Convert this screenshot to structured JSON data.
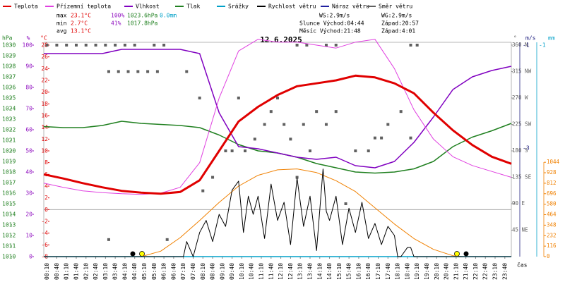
{
  "chart_data": {
    "type": "line",
    "title": "12.6.2025",
    "x_label": "čas",
    "xlim": [
      0,
      1440
    ],
    "xticks": [
      {
        "value": 10,
        "label": "00:10"
      },
      {
        "value": 40,
        "label": "00:40"
      },
      {
        "value": 70,
        "label": "01:10"
      },
      {
        "value": 100,
        "label": "01:40"
      },
      {
        "value": 130,
        "label": "02:10"
      },
      {
        "value": 160,
        "label": "02:40"
      },
      {
        "value": 190,
        "label": "03:10"
      },
      {
        "value": 220,
        "label": "03:40"
      },
      {
        "value": 250,
        "label": "04:10"
      },
      {
        "value": 280,
        "label": "04:40"
      },
      {
        "value": 310,
        "label": "05:10"
      },
      {
        "value": 340,
        "label": "05:40"
      },
      {
        "value": 370,
        "label": "06:10"
      },
      {
        "value": 400,
        "label": "06:40"
      },
      {
        "value": 430,
        "label": "07:10"
      },
      {
        "value": 460,
        "label": "07:40"
      },
      {
        "value": 490,
        "label": "08:10"
      },
      {
        "value": 520,
        "label": "08:40"
      },
      {
        "value": 550,
        "label": "09:10"
      },
      {
        "value": 580,
        "label": "09:40"
      },
      {
        "value": 610,
        "label": "10:10"
      },
      {
        "value": 640,
        "label": "10:40"
      },
      {
        "value": 670,
        "label": "11:10"
      },
      {
        "value": 700,
        "label": "11:40"
      },
      {
        "value": 730,
        "label": "12:10"
      },
      {
        "value": 760,
        "label": "12:40"
      },
      {
        "value": 790,
        "label": "13:10"
      },
      {
        "value": 820,
        "label": "13:40"
      },
      {
        "value": 850,
        "label": "14:10"
      },
      {
        "value": 880,
        "label": "14:40"
      },
      {
        "value": 910,
        "label": "15:10"
      },
      {
        "value": 940,
        "label": "15:40"
      },
      {
        "value": 970,
        "label": "16:10"
      },
      {
        "value": 1000,
        "label": "16:40"
      },
      {
        "value": 1030,
        "label": "17:10"
      },
      {
        "value": 1060,
        "label": "17:40"
      },
      {
        "value": 1090,
        "label": "18:10"
      },
      {
        "value": 1120,
        "label": "18:40"
      },
      {
        "value": 1150,
        "label": "19:10"
      },
      {
        "value": 1180,
        "label": "19:40"
      },
      {
        "value": 1210,
        "label": "20:10"
      },
      {
        "value": 1240,
        "label": "20:40"
      },
      {
        "value": 1270,
        "label": "21:10"
      },
      {
        "value": 1300,
        "label": "21:40"
      },
      {
        "value": 1330,
        "label": "22:10"
      },
      {
        "value": 1360,
        "label": "22:40"
      },
      {
        "value": 1390,
        "label": "23:10"
      },
      {
        "value": 1420,
        "label": "23:40"
      }
    ],
    "axes": {
      "hpa": {
        "label": "hPa",
        "color": "#208020",
        "lim": [
          1010,
          1030
        ],
        "ticks": [
          1010,
          1011,
          1012,
          1013,
          1014,
          1015,
          1016,
          1017,
          1018,
          1019,
          1020,
          1021,
          1022,
          1023,
          1024,
          1025,
          1026,
          1027,
          1028,
          1029,
          1030
        ]
      },
      "hum": {
        "label": "%",
        "color": "#9010c0",
        "lim": [
          0,
          100
        ],
        "ticks": [
          0,
          10,
          20,
          30,
          40,
          50,
          60,
          70,
          80,
          90,
          100
        ]
      },
      "temp": {
        "label": "°C",
        "color": "#e00000",
        "lim": [
          -8,
          28
        ],
        "ticks": [
          -8,
          -6,
          -4,
          -2,
          0,
          2,
          4,
          6,
          8,
          10,
          12,
          14,
          16,
          18,
          20,
          22,
          24,
          26,
          28
        ]
      },
      "dir": {
        "label": "°",
        "color": "#606060",
        "lim": [
          0,
          360
        ],
        "ticks": [
          {
            "value": 45,
            "label": "45 NE"
          },
          {
            "value": 90,
            "label": "90 E"
          },
          {
            "value": 135,
            "label": "135 SE"
          },
          {
            "value": 180,
            "label": "180 S"
          },
          {
            "value": 225,
            "label": "225 SW"
          },
          {
            "value": 270,
            "label": "270 W"
          },
          {
            "value": 315,
            "label": "315 NW"
          },
          {
            "value": 360,
            "label": "360 N"
          }
        ]
      },
      "wind": {
        "label": "m/s",
        "color": "#202080",
        "lim": [
          0,
          7
        ],
        "marks": [
          "-1",
          "-3"
        ]
      },
      "rain": {
        "label": "mm",
        "color": "#00a0c8",
        "lim": [
          0,
          10
        ],
        "marks": [
          "-1"
        ]
      },
      "rad": {
        "color": "#f08000",
        "lim": [
          0,
          2340
        ],
        "ticks": [
          0,
          116,
          232,
          348,
          464,
          580,
          696,
          812,
          928,
          1044
        ]
      }
    },
    "stats": [
      {
        "label": "max",
        "temp": "23.1°C",
        "hum": "100%",
        "press": "1023.6hPa",
        "rain": "0.0mm"
      },
      {
        "label": "min",
        "temp": "2.7°C",
        "hum": "41%",
        "press": "1017.8hPa"
      },
      {
        "label": "avg",
        "temp": "13.1°C"
      }
    ],
    "info": [
      "WS:2.9m/s",
      "WG:2.9m/s",
      "Slunce Východ:04:44",
      "Západ:20:57",
      "Měsíc Východ:21:48",
      "Západ:4:01"
    ],
    "series": [
      {
        "name": "Teplota",
        "color": "#e00000",
        "axis": "temp",
        "width": 3,
        "x": [
          0,
          60,
          120,
          180,
          240,
          300,
          360,
          420,
          480,
          540,
          600,
          660,
          720,
          780,
          840,
          900,
          960,
          1020,
          1080,
          1140,
          1200,
          1260,
          1320,
          1380,
          1440
        ],
        "values": [
          6,
          5.3,
          4.5,
          3.8,
          3.2,
          2.9,
          2.7,
          3,
          5,
          10,
          15,
          17.5,
          19.5,
          21,
          21.5,
          22,
          22.8,
          22.5,
          21.5,
          19.8,
          16.5,
          13.5,
          11,
          9,
          7.8
        ]
      },
      {
        "name": "Přízemní teplota",
        "color": "#e040e0",
        "axis": "temp",
        "width": 1,
        "x": [
          0,
          60,
          120,
          180,
          240,
          300,
          360,
          420,
          480,
          540,
          600,
          660,
          720,
          780,
          840,
          900,
          960,
          1020,
          1080,
          1140,
          1200,
          1260,
          1320,
          1380,
          1440
        ],
        "values": [
          4.5,
          3.8,
          3.2,
          2.9,
          2.7,
          2.6,
          2.8,
          3.8,
          8,
          19,
          27,
          29,
          28.5,
          28.5,
          28,
          27.5,
          28.5,
          29,
          24,
          17,
          12,
          9,
          7.5,
          6.5,
          5.5
        ]
      },
      {
        "name": "Vlhkost",
        "color": "#8000c0",
        "axis": "hum",
        "width": 1.5,
        "x": [
          0,
          60,
          120,
          180,
          240,
          300,
          360,
          420,
          480,
          540,
          600,
          660,
          720,
          780,
          840,
          900,
          960,
          1020,
          1080,
          1140,
          1200,
          1260,
          1320,
          1380,
          1440
        ],
        "values": [
          96,
          96,
          96,
          96,
          98,
          98,
          98,
          98,
          96,
          68,
          52,
          51,
          49,
          47,
          46,
          47,
          43,
          42,
          45,
          54,
          66,
          79,
          85,
          88,
          90
        ]
      },
      {
        "name": "Tlak",
        "color": "#208020",
        "axis": "hpa",
        "width": 1.5,
        "x": [
          0,
          60,
          120,
          180,
          240,
          300,
          360,
          420,
          480,
          540,
          600,
          660,
          720,
          780,
          840,
          900,
          960,
          1020,
          1080,
          1140,
          1200,
          1260,
          1320,
          1380,
          1440
        ],
        "values": [
          1022.3,
          1022.2,
          1022.2,
          1022.4,
          1022.8,
          1022.6,
          1022.5,
          1022.4,
          1022.2,
          1021.5,
          1020.6,
          1020,
          1019.8,
          1019.4,
          1018.8,
          1018.4,
          1018,
          1017.9,
          1018,
          1018.3,
          1019,
          1020.4,
          1021.3,
          1021.9,
          1022.6
        ]
      },
      {
        "name": "Srážky",
        "color": "#00a0c8",
        "axis": "rain",
        "width": 1.5,
        "x": [
          0,
          1440
        ],
        "values": [
          0,
          0
        ]
      },
      {
        "name": "Rychlost větru",
        "color": "#000000",
        "axis": "wind",
        "width": 1,
        "x": [
          0,
          430,
          440,
          460,
          480,
          500,
          520,
          540,
          560,
          580,
          600,
          615,
          630,
          645,
          660,
          680,
          700,
          720,
          740,
          760,
          780,
          800,
          820,
          840,
          860,
          870,
          880,
          900,
          920,
          940,
          960,
          980,
          1000,
          1020,
          1040,
          1060,
          1080,
          1090,
          1100,
          1120,
          1130,
          1140,
          1440
        ],
        "values": [
          0,
          0,
          0.5,
          0,
          0.8,
          1.2,
          0.5,
          1.4,
          1,
          2.2,
          2.5,
          0.8,
          2,
          1.4,
          2,
          0.6,
          2.4,
          1.2,
          1.8,
          0.4,
          2.6,
          1,
          2,
          0.2,
          2.9,
          1.5,
          1.2,
          2,
          0.4,
          1.6,
          0.8,
          1.8,
          0.6,
          1.1,
          0.4,
          1,
          0.7,
          0,
          0,
          0.3,
          0.3,
          0,
          0
        ]
      },
      {
        "name": "Náraz větru",
        "color": "#2020a0",
        "axis": "wind",
        "width": 1
      },
      {
        "name": "Směr větru",
        "color": "#606060",
        "axis": "dir",
        "marker": "square",
        "x": [
          10,
          40,
          70,
          100,
          130,
          160,
          190,
          220,
          250,
          280,
          340,
          370,
          200,
          230,
          260,
          290,
          320,
          350,
          440,
          480,
          490,
          520,
          560,
          580,
          600,
          620,
          650,
          680,
          700,
          720,
          740,
          760,
          780,
          800,
          820,
          840,
          870,
          900,
          930,
          960,
          1000,
          1020,
          1040,
          1060,
          1100,
          1130,
          780,
          810,
          870,
          900,
          1130,
          1150,
          380,
          200
        ],
        "values": [
          360,
          360,
          360,
          360,
          360,
          360,
          360,
          360,
          360,
          360,
          360,
          360,
          315,
          315,
          315,
          315,
          315,
          315,
          315,
          270,
          112,
          135,
          180,
          180,
          270,
          180,
          200,
          225,
          247,
          270,
          225,
          200,
          135,
          225,
          180,
          247,
          225,
          247,
          90,
          180,
          180,
          202,
          202,
          225,
          247,
          202,
          360,
          360,
          360,
          360,
          360,
          360,
          29,
          29
        ]
      }
    ],
    "radiation": {
      "color": "#f08000",
      "axis": "rad",
      "x": [
        0,
        300,
        360,
        420,
        480,
        540,
        600,
        660,
        720,
        780,
        840,
        900,
        960,
        1020,
        1080,
        1140,
        1200,
        1260,
        1290,
        1440
      ],
      "values": [
        0,
        0,
        60,
        210,
        400,
        600,
        780,
        900,
        960,
        970,
        930,
        840,
        720,
        540,
        360,
        200,
        80,
        10,
        0,
        0
      ]
    }
  }
}
